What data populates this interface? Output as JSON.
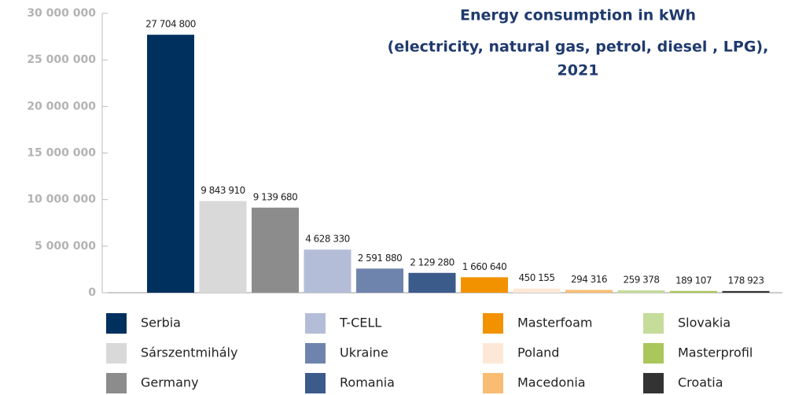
{
  "chart_data": {
    "type": "bar",
    "title": [
      "Energy consumption in kWh",
      "(electricity, natural gas, petrol, diesel , LPG),",
      "2021"
    ],
    "categories": [
      "Serbia",
      "Sárszentmihály",
      "Germany",
      "T-CELL",
      "Ukraine",
      "Romania",
      "Masterfoam",
      "Poland",
      "Macedonia",
      "Slovakia",
      "Masterprofil",
      "Croatia"
    ],
    "values": [
      27704800,
      9843910,
      9139680,
      4628330,
      2591880,
      2129280,
      1660640,
      450155,
      294316,
      259378,
      189107,
      178923
    ],
    "value_labels": [
      "27 704 800",
      "9 843 910",
      "9 139 680",
      "4 628 330",
      "2 591 880",
      "2 129 280",
      "1 660 640",
      "450 155",
      "294 316",
      "259 378",
      "189 107",
      "178 923"
    ],
    "colors": [
      "#00305e",
      "#d9d9d9",
      "#8c8c8c",
      "#b4bdd8",
      "#6f84ad",
      "#3b5b8a",
      "#f39200",
      "#fde8d7",
      "#f8bd72",
      "#c5dc9a",
      "#a9c75a",
      "#333333"
    ],
    "ylim": [
      0,
      30000000
    ],
    "yticks": [
      {
        "value": 0,
        "label": "0"
      },
      {
        "value": 5000000,
        "label": "5 000 000"
      },
      {
        "value": 10000000,
        "label": "10 000 000"
      },
      {
        "value": 15000000,
        "label": "15 000 000"
      },
      {
        "value": 20000000,
        "label": "20 000 000"
      },
      {
        "value": 25000000,
        "label": "25 000 000"
      },
      {
        "value": 30000000,
        "label": "30 000 000"
      }
    ],
    "legend": "bottom"
  }
}
